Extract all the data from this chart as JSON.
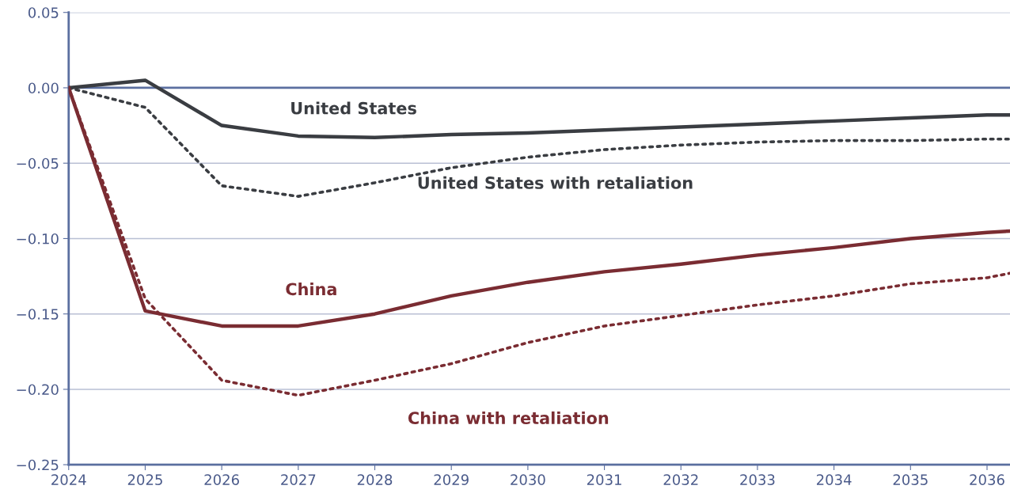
{
  "chart_data": {
    "type": "line",
    "x": [
      2024,
      2025,
      2026,
      2027,
      2028,
      2029,
      2030,
      2031,
      2032,
      2033,
      2034,
      2035,
      2036,
      2036.3
    ],
    "series": [
      {
        "name": "United States",
        "color": "#3a3d42",
        "line_style": "solid",
        "values": [
          0,
          0.005,
          -0.025,
          -0.032,
          -0.033,
          -0.031,
          -0.03,
          -0.028,
          -0.026,
          -0.024,
          -0.022,
          -0.02,
          -0.018,
          -0.018
        ]
      },
      {
        "name": "United States with retaliation",
        "color": "#3a3d42",
        "line_style": "dotted",
        "values": [
          0,
          -0.013,
          -0.065,
          -0.072,
          -0.063,
          -0.053,
          -0.046,
          -0.041,
          -0.038,
          -0.036,
          -0.035,
          -0.035,
          -0.034,
          -0.034
        ]
      },
      {
        "name": "China",
        "color": "#7a2c32",
        "line_style": "solid",
        "values": [
          0,
          -0.148,
          -0.158,
          -0.158,
          -0.15,
          -0.138,
          -0.129,
          -0.122,
          -0.117,
          -0.111,
          -0.106,
          -0.1,
          -0.096,
          -0.095
        ]
      },
      {
        "name": "China with retaliation",
        "color": "#7a2c32",
        "line_style": "dotted",
        "values": [
          0,
          -0.14,
          -0.194,
          -0.204,
          -0.194,
          -0.183,
          -0.169,
          -0.158,
          -0.151,
          -0.144,
          -0.138,
          -0.13,
          -0.126,
          -0.123
        ]
      }
    ],
    "xlim": [
      2024,
      2036.3
    ],
    "ylim": [
      -0.25,
      0.05
    ],
    "xticks": [
      2024,
      2025,
      2026,
      2027,
      2028,
      2029,
      2030,
      2031,
      2032,
      2033,
      2034,
      2035,
      2036
    ],
    "yticks": [
      {
        "value": 0.05,
        "label": "0.05"
      },
      {
        "value": 0,
        "label": "0.00"
      },
      {
        "value": -0.05,
        "label": "−0.05"
      },
      {
        "value": -0.1,
        "label": "−0.10"
      },
      {
        "value": -0.15,
        "label": "−0.15"
      },
      {
        "value": -0.2,
        "label": "−0.20"
      },
      {
        "value": -0.25,
        "label": "−0.25"
      }
    ],
    "grid": "y",
    "legend": false,
    "marker": "none",
    "ref_lines": [
      {
        "axis": "y",
        "value": 0,
        "color": "#5b6fa0",
        "line_style": "solid"
      }
    ]
  }
}
